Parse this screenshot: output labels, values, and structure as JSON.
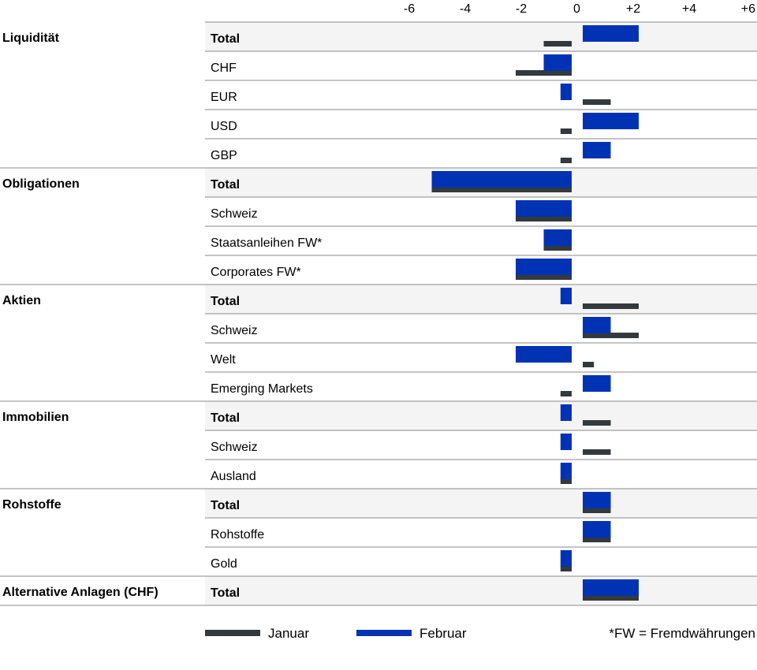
{
  "chart_data": {
    "type": "bar",
    "orientation": "horizontal",
    "x_ticks": [
      "-6",
      "-4",
      "-2",
      "0",
      "+2",
      "+4",
      "+6"
    ],
    "x_tick_values": [
      -6,
      -4,
      -2,
      0,
      2,
      4,
      6
    ],
    "xlim": [
      -6,
      6
    ],
    "series": [
      {
        "name": "Januar",
        "color": "#33393d"
      },
      {
        "name": "Februar",
        "color": "#0033b4"
      }
    ],
    "groups": [
      {
        "name": "Liquidität",
        "rows": [
          {
            "label": "Total",
            "bold": true,
            "januar": -1,
            "februar": 2
          },
          {
            "label": "CHF",
            "bold": false,
            "januar": -2,
            "februar": -1
          },
          {
            "label": "EUR",
            "bold": false,
            "januar": 1,
            "februar": -0.4
          },
          {
            "label": "USD",
            "bold": false,
            "januar": -0.4,
            "februar": 2
          },
          {
            "label": "GBP",
            "bold": false,
            "januar": -0.4,
            "februar": 1
          }
        ]
      },
      {
        "name": "Obligationen",
        "rows": [
          {
            "label": "Total",
            "bold": true,
            "januar": -5,
            "februar": -5
          },
          {
            "label": "Schweiz",
            "bold": false,
            "januar": -2,
            "februar": -2
          },
          {
            "label": "Staatsanleihen FW*",
            "bold": false,
            "januar": -1,
            "februar": -1
          },
          {
            "label": "Corporates FW*",
            "bold": false,
            "januar": -2,
            "februar": -2
          }
        ]
      },
      {
        "name": "Aktien",
        "rows": [
          {
            "label": "Total",
            "bold": true,
            "januar": 2,
            "februar": -0.4
          },
          {
            "label": "Schweiz",
            "bold": false,
            "januar": 2,
            "februar": 1
          },
          {
            "label": "Welt",
            "bold": false,
            "januar": 0.4,
            "februar": -2
          },
          {
            "label": "Emerging Markets",
            "bold": false,
            "januar": -0.4,
            "februar": 1
          }
        ]
      },
      {
        "name": "Immobilien",
        "rows": [
          {
            "label": "Total",
            "bold": true,
            "januar": 1,
            "februar": -0.4
          },
          {
            "label": "Schweiz",
            "bold": false,
            "januar": 1,
            "februar": -0.4
          },
          {
            "label": "Ausland",
            "bold": false,
            "januar": -0.4,
            "februar": -0.4
          }
        ]
      },
      {
        "name": "Rohstoffe",
        "rows": [
          {
            "label": "Total",
            "bold": true,
            "januar": 1,
            "februar": 1
          },
          {
            "label": "Rohstoffe",
            "bold": false,
            "januar": 1,
            "februar": 1
          },
          {
            "label": "Gold",
            "bold": false,
            "januar": -0.4,
            "februar": -0.4
          }
        ]
      },
      {
        "name": "Alternative Anlagen (CHF)",
        "rows": [
          {
            "label": "Total",
            "bold": true,
            "januar": 2,
            "februar": 2
          }
        ]
      }
    ],
    "footnote": "*FW = Fremdwährungen",
    "colors": {
      "band": "#f4f4f4",
      "rule": "#8a8a8a"
    }
  }
}
